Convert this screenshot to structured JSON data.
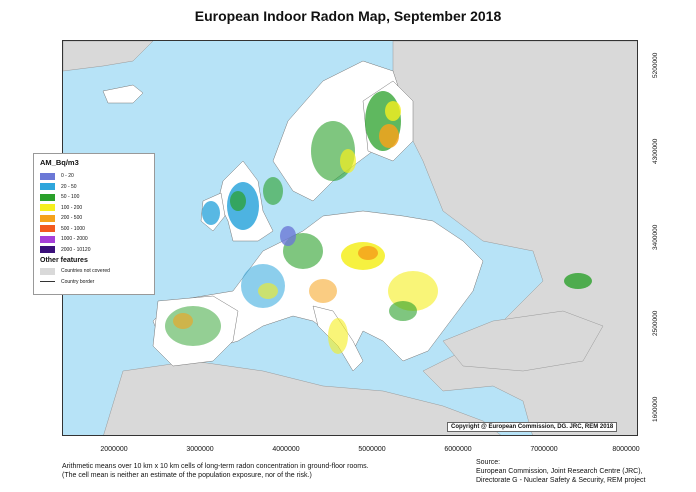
{
  "title": "European Indoor Radon Map, September 2018",
  "legend": {
    "title": "AM_Bq/m3",
    "classes": [
      {
        "label": "0 - 20",
        "color": "#6b78d6"
      },
      {
        "label": "20 - 50",
        "color": "#2ea6dc"
      },
      {
        "label": "50 - 100",
        "color": "#2aa02a"
      },
      {
        "label": "100 - 200",
        "color": "#f5ef1e"
      },
      {
        "label": "200 - 500",
        "color": "#f5a21b"
      },
      {
        "label": "500 - 1000",
        "color": "#f25a1e"
      },
      {
        "label": "1000 - 2000",
        "color": "#a63fd8"
      },
      {
        "label": "2000 - 10120",
        "color": "#3a0f7a"
      }
    ],
    "other_title": "Other features",
    "countries_not_covered": "Countries not covered",
    "country_border": "Country border"
  },
  "colors": {
    "sea": "#b7e3f7",
    "land_not_covered": "#d9d9d9",
    "covered_base": "#ffffff"
  },
  "x_ticks": [
    "2000000",
    "3000000",
    "4000000",
    "5000000",
    "6000000",
    "7000000",
    "8000000"
  ],
  "y_ticks": [
    "5200000",
    "4300000",
    "3400000",
    "2500000",
    "1600000"
  ],
  "copyright": "Copyright @ European Commission, DG. JRC, REM 2018",
  "footnote": {
    "line1": "Arithmetic means over 10 km x 10 km cells of long-term radon concentration in ground-floor rooms.",
    "line2": "(The cell mean is neither an estimate of the population exposure, nor of the risk.)"
  },
  "source": {
    "line1": "Source:",
    "line2": "European Commission, Joint Research Centre (JRC),",
    "line3": "Directorate G - Nuclear Safety & Security, REM project"
  }
}
